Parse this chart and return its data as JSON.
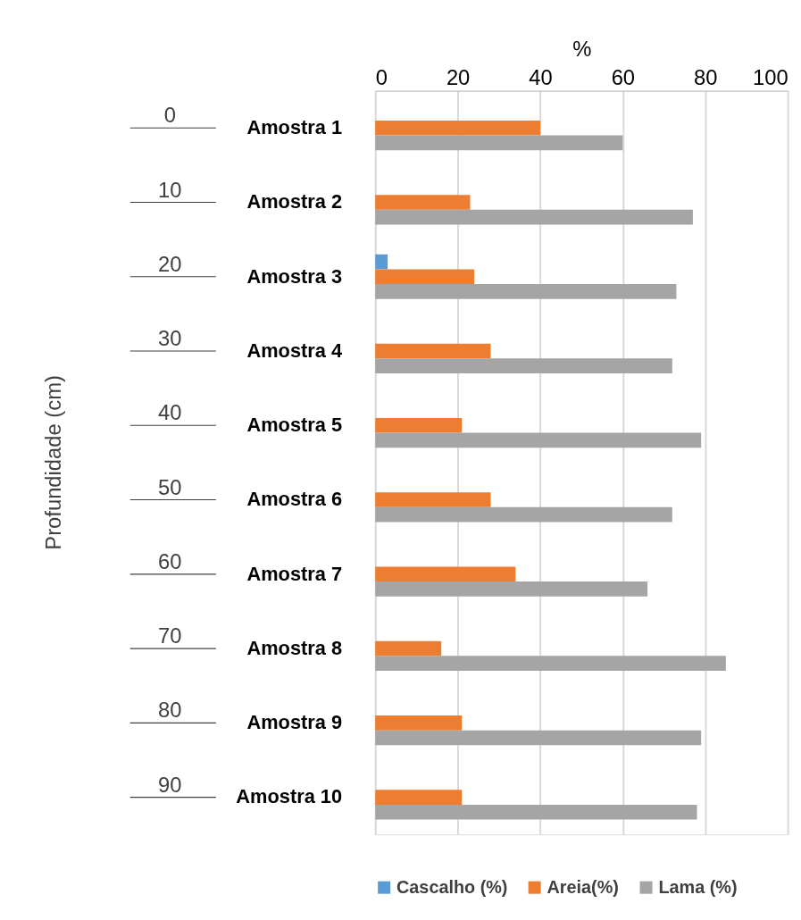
{
  "chart_data": {
    "type": "bar",
    "orientation": "horizontal",
    "xlabel": "%",
    "categories": [
      "Amostra 1",
      "Amostra 2",
      "Amostra 3",
      "Amostra 4",
      "Amostra 5",
      "Amostra 6",
      "Amostra 7",
      "Amostra 8",
      "Amostra 9",
      "Amostra 10"
    ],
    "series": [
      {
        "name": "Cascalho (%)",
        "color": "#5b9bd5",
        "values": [
          null,
          null,
          3,
          null,
          null,
          null,
          null,
          null,
          null,
          null
        ]
      },
      {
        "name": "Areia(%)",
        "color": "#ed7d31",
        "values": [
          40,
          23,
          24,
          28,
          21,
          28,
          34,
          16,
          21,
          21
        ]
      },
      {
        "name": "Lama (%)",
        "color": "#a5a5a5",
        "values": [
          60,
          77,
          73,
          72,
          79,
          72,
          66,
          85,
          79,
          78
        ]
      }
    ],
    "xlim": [
      0,
      100
    ],
    "xticks": [
      0,
      20,
      40,
      60,
      80,
      100
    ],
    "annotations": [
      "Profundidade (cm)",
      "0",
      "10",
      "20",
      "30",
      "40",
      "50",
      "60",
      "70",
      "80",
      "90"
    ],
    "grid": "x",
    "legend": "bottom"
  }
}
